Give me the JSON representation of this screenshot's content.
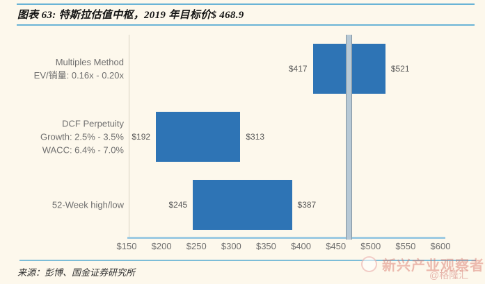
{
  "page": {
    "background": "#fdf8ec",
    "accent_rule_color": "#6ab4d6"
  },
  "header": {
    "title": "图表 63: 特斯拉估值中枢，2019 年目标价$ 468.9"
  },
  "chart_data": {
    "type": "bar",
    "subtype": "horizontal-range",
    "title": "特斯拉估值中枢，2019 年目标价$ 468.9",
    "xlim": [
      150,
      600
    ],
    "x_tick_values": [
      150,
      200,
      250,
      300,
      350,
      400,
      450,
      500,
      550,
      600
    ],
    "x_tick_labels": [
      "$150",
      "$200",
      "$250",
      "$300",
      "$350",
      "$400",
      "$450",
      "$500",
      "$550",
      "$600"
    ],
    "target_price": 468.9,
    "series": [
      {
        "category_lines": [
          "Multiples Method",
          "EV/销量: 0.16x - 0.20x"
        ],
        "low": 417,
        "high": 521,
        "low_label": "$417",
        "high_label": "$521"
      },
      {
        "category_lines": [
          "DCF Perpetuity",
          "Growth: 2.5% - 3.5%",
          "WACC: 6.4% - 7.0%"
        ],
        "low": 192,
        "high": 313,
        "low_label": "$192",
        "high_label": "$313"
      },
      {
        "category_lines": [
          "52-Week high/low"
        ],
        "low": 245,
        "high": 387,
        "low_label": "$245",
        "high_label": "$387"
      }
    ],
    "bar_color": "#2e74b5",
    "marker_fill_color": "#b7c9d6",
    "marker_border_color": "#8495a1",
    "axis_line_color": "#9ecbe2",
    "grid": false,
    "legend": null
  },
  "footer": {
    "source": "来源：彭博、国金证券研究所"
  },
  "watermark": {
    "brand": "新兴产业观察者",
    "handle": "@格隆汇",
    "color": "#d9746b"
  }
}
